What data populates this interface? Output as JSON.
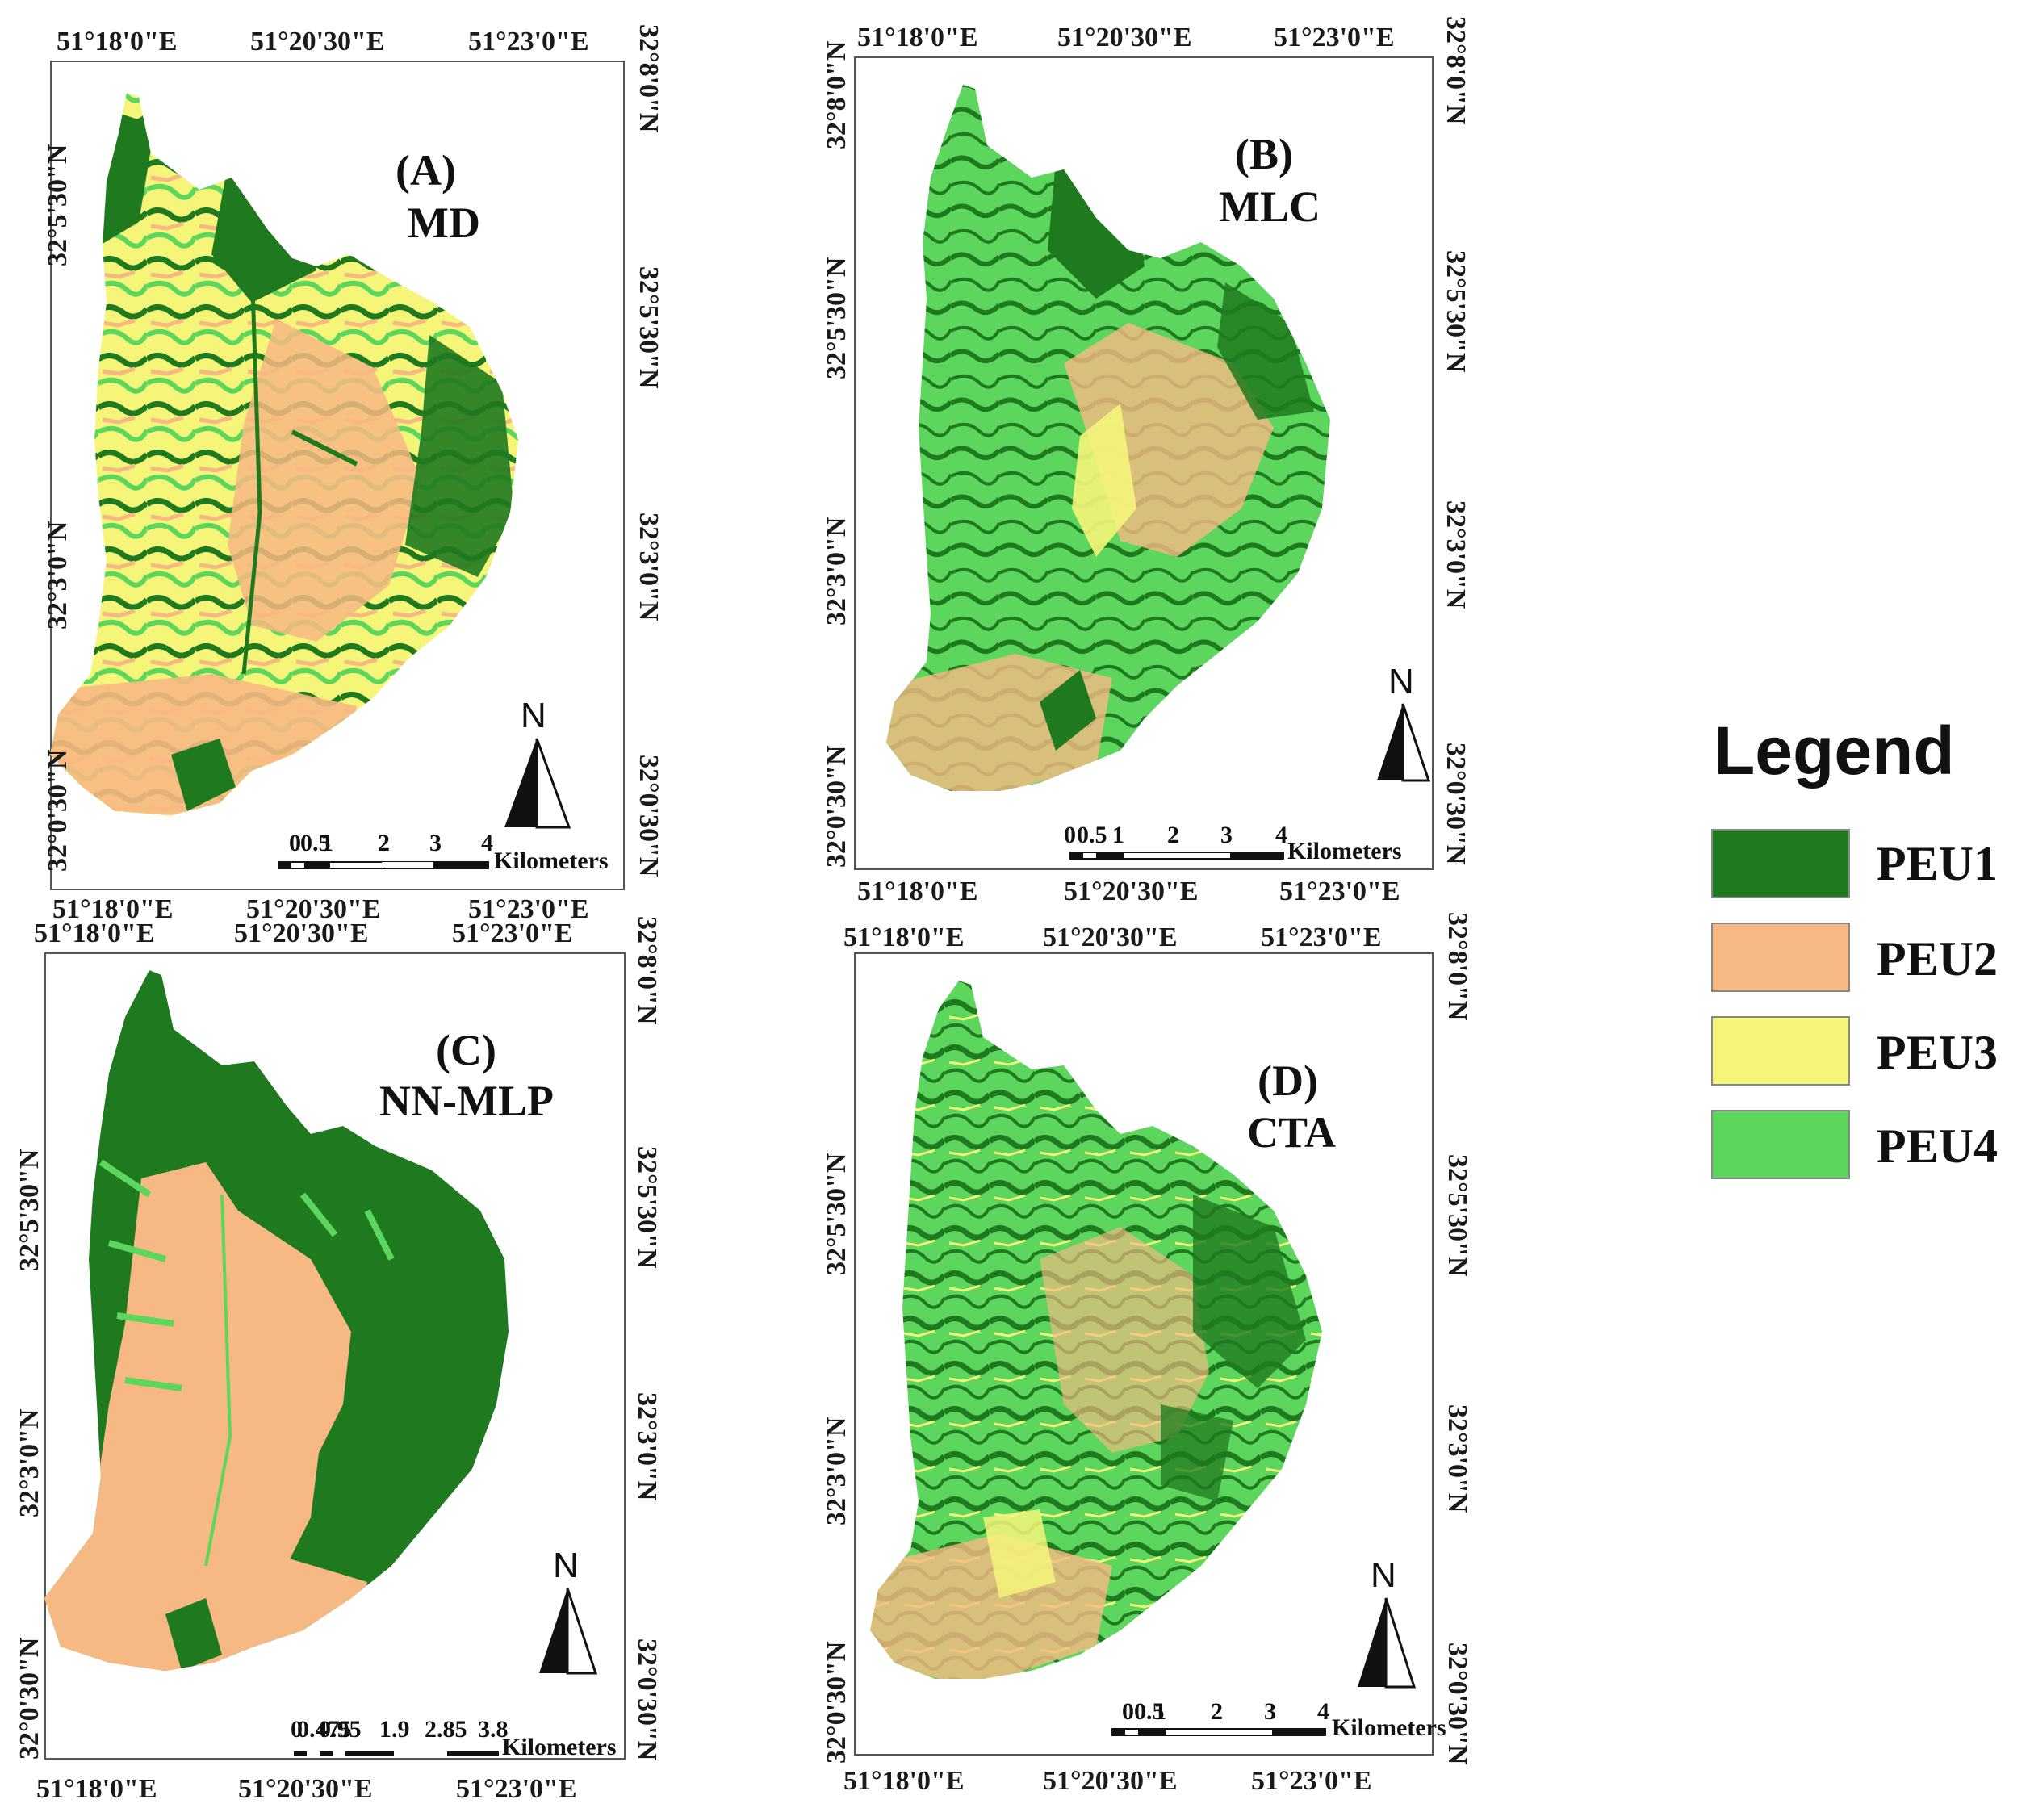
{
  "colors": {
    "peu1": "#1f7a1f",
    "peu2": "#f7b983",
    "peu3": "#f5f57a",
    "peu4": "#5cd65c"
  },
  "lon_labels": [
    "51°18'0\"E",
    "51°20'30\"E",
    "51°23'0\"E"
  ],
  "lat_labels": [
    "32°8'0\"N",
    "32°5'30\"N",
    "32°3'0\"N",
    "32°0'30\"N"
  ],
  "panels": [
    {
      "letter": "(A)",
      "name": "MD",
      "scale_ticks": [
        "0",
        "0.5",
        "1",
        "2",
        "3",
        "4"
      ],
      "scale_unit": "Kilometers"
    },
    {
      "letter": "(B)",
      "name": "MLC",
      "scale_ticks": [
        "0",
        "0.5",
        "1",
        "2",
        "3",
        "4"
      ],
      "scale_unit": "Kilometers"
    },
    {
      "letter": "(C)",
      "name": "NN-MLP",
      "scale_ticks": [
        "0",
        "0.475",
        "0.95",
        "1.9",
        "2.85",
        "3.8"
      ],
      "scale_unit": "Kilometers"
    },
    {
      "letter": "(D)",
      "name": "CTA",
      "scale_ticks": [
        "0",
        "0.5",
        "1",
        "2",
        "3",
        "4"
      ],
      "scale_unit": "Kilometers"
    }
  ],
  "north_letter": "N",
  "legend": {
    "title": "Legend",
    "items": [
      {
        "label": "PEU1",
        "color": "#1f7a1f"
      },
      {
        "label": "PEU2",
        "color": "#f7b983"
      },
      {
        "label": "PEU3",
        "color": "#f5f57a"
      },
      {
        "label": "PEU4",
        "color": "#5cd65c"
      }
    ]
  }
}
